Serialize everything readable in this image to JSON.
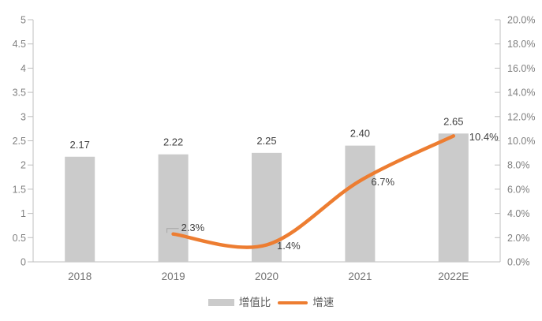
{
  "chart_data": {
    "type": "bar+line-combo",
    "title": "",
    "categories": [
      "2018",
      "2019",
      "2020",
      "2021",
      "2022E"
    ],
    "series": [
      {
        "name": "增值比",
        "type": "bar",
        "axis": "left",
        "color": "#cbcbcb",
        "values": [
          2.17,
          2.22,
          2.25,
          2.4,
          2.65
        ],
        "labels": [
          "2.17",
          "2.22",
          "2.25",
          "2.40",
          "2.65"
        ]
      },
      {
        "name": "增速",
        "type": "line",
        "axis": "right",
        "color": "#ed7d31",
        "values": [
          null,
          2.3,
          1.4,
          6.7,
          10.4
        ],
        "labels": [
          null,
          "2.3%",
          "1.4%",
          "6.7%",
          "10.4%"
        ]
      }
    ],
    "left_axis": {
      "min": 0,
      "max": 5,
      "step": 0.5,
      "ticks": [
        "0",
        "0.5",
        "1",
        "1.5",
        "2",
        "2.5",
        "3",
        "3.5",
        "4",
        "4.5",
        "5"
      ]
    },
    "right_axis": {
      "min": 0,
      "max": 20,
      "step": 2,
      "ticks": [
        "0.0%",
        "2.0%",
        "4.0%",
        "6.0%",
        "8.0%",
        "10.0%",
        "12.0%",
        "14.0%",
        "16.0%",
        "18.0%",
        "20.0%"
      ]
    },
    "legend": [
      {
        "label": "增值比",
        "swatch": "bar",
        "color": "#cbcbcb"
      },
      {
        "label": "增速",
        "swatch": "line",
        "color": "#ed7d31"
      }
    ],
    "grid": "off",
    "legend_position": "bottom-center",
    "colors": {
      "axis_line": "#bfbfbf",
      "axis_text": "#808080",
      "category_text": "#737373",
      "data_label": "#404040",
      "leader_line": "#a6a6a6",
      "background": "#ffffff"
    }
  }
}
